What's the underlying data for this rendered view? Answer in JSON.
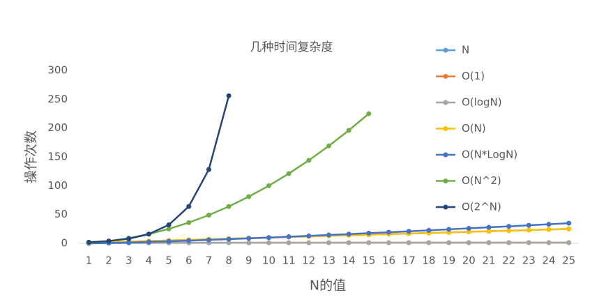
{
  "chart_data": {
    "type": "line",
    "title": "几种时间复杂度",
    "x_label": "N的值",
    "y_label": "操作次数",
    "categories": [
      "1",
      "2",
      "3",
      "4",
      "5",
      "6",
      "7",
      "8",
      "9",
      "10",
      "11",
      "12",
      "13",
      "14",
      "15",
      "16",
      "17",
      "18",
      "19",
      "20",
      "21",
      "22",
      "23",
      "24",
      "25"
    ],
    "ylim": [
      0,
      300
    ],
    "yticks": [
      0,
      50,
      100,
      150,
      200,
      250,
      300
    ],
    "grid": false,
    "legend": "right",
    "series": [
      {
        "name": "N",
        "color": "#5B9BD5",
        "values": [
          1,
          2,
          3,
          4,
          5,
          6,
          7,
          8,
          9,
          10,
          11,
          12,
          13,
          14,
          15,
          16,
          17,
          18,
          19,
          20,
          21,
          22,
          23,
          24,
          25
        ]
      },
      {
        "name": "O(1)",
        "color": "#ED7D31",
        "values": [
          1,
          1,
          1,
          1,
          1,
          1,
          1,
          1,
          1,
          1,
          1,
          1,
          1,
          1,
          1,
          1,
          1,
          1,
          1,
          1,
          1,
          1,
          1,
          1,
          1
        ]
      },
      {
        "name": "O(logN)",
        "color": "#A5A5A5",
        "values": [
          0,
          0.3,
          0.48,
          0.6,
          0.7,
          0.78,
          0.85,
          0.9,
          0.95,
          1,
          1.04,
          1.08,
          1.11,
          1.15,
          1.18,
          1.2,
          1.23,
          1.26,
          1.28,
          1.3,
          1.32,
          1.34,
          1.36,
          1.38,
          1.4
        ]
      },
      {
        "name": "O(N)",
        "color": "#FFC000",
        "values": [
          1,
          2,
          3,
          4,
          5,
          6,
          7,
          8,
          9,
          10,
          11,
          12,
          13,
          14,
          15,
          16,
          17,
          18,
          19,
          20,
          21,
          22,
          23,
          24,
          25
        ]
      },
      {
        "name": "O(N*LogN)",
        "color": "#4472C4",
        "values": [
          0,
          0.6,
          1.43,
          2.41,
          3.49,
          4.67,
          5.92,
          7.22,
          8.59,
          10,
          11.46,
          12.95,
          14.48,
          16.05,
          17.64,
          19.27,
          20.92,
          22.59,
          24.3,
          26.02,
          27.77,
          29.53,
          31.32,
          33.13,
          34.95
        ]
      },
      {
        "name": "O(N^2)",
        "color": "#70AD47",
        "values": [
          1,
          4,
          9,
          16,
          25,
          36,
          49,
          64,
          81,
          100,
          121,
          144,
          169,
          196,
          225,
          null,
          null,
          null,
          null,
          null,
          null,
          null,
          null,
          null,
          null
        ]
      },
      {
        "name": "O(2^N)",
        "color": "#264478",
        "values": [
          2,
          4,
          8,
          16,
          32,
          64,
          128,
          256,
          null,
          null,
          null,
          null,
          null,
          null,
          null,
          null,
          null,
          null,
          null,
          null,
          null,
          null,
          null,
          null,
          null
        ]
      }
    ]
  }
}
